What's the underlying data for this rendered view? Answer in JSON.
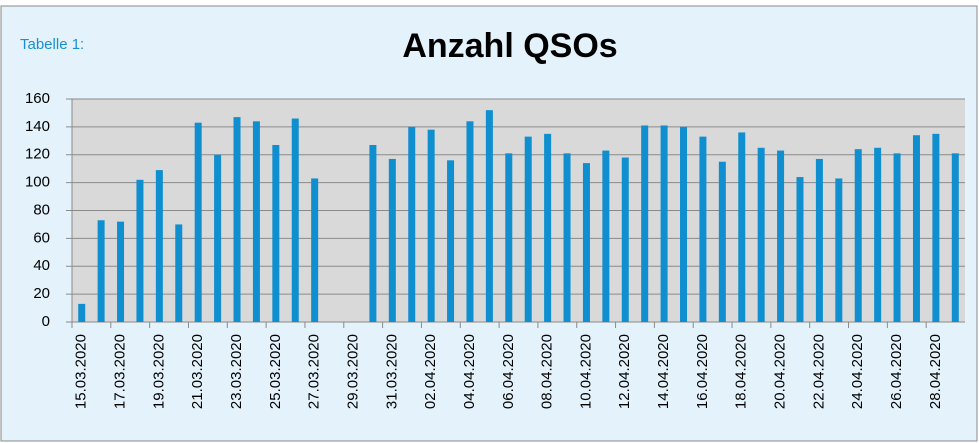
{
  "chart_data": {
    "type": "bar",
    "caption": "Tabelle 1:",
    "title": "Anzahl QSOs",
    "categories": [
      "15.03.2020",
      null,
      "17.03.2020",
      null,
      "19.03.2020",
      null,
      "21.03.2020",
      null,
      "23.03.2020",
      null,
      "25.03.2020",
      null,
      "27.03.2020",
      null,
      "29.03.2020",
      null,
      "31.03.2020",
      null,
      "02.04.2020",
      null,
      "04.04.2020",
      null,
      "06.04.2020",
      null,
      "08.04.2020",
      null,
      "10.04.2020",
      null,
      "12.04.2020",
      null,
      "14.04.2020",
      null,
      "16.04.2020",
      null,
      "18.04.2020",
      null,
      "20.04.2020",
      null,
      "22.04.2020",
      null,
      "24.04.2020",
      null,
      "26.04.2020",
      null,
      "28.04.2020",
      null
    ],
    "values": [
      13,
      73,
      72,
      102,
      109,
      70,
      143,
      120,
      147,
      144,
      127,
      146,
      103,
      null,
      null,
      127,
      117,
      140,
      138,
      116,
      144,
      152,
      121,
      133,
      135,
      121,
      114,
      123,
      118,
      141,
      141,
      140,
      133,
      115,
      136,
      125,
      123,
      104,
      117,
      103,
      124,
      125,
      121,
      134,
      135,
      121
    ],
    "color": "#0f8fcf",
    "ylim": [
      0,
      160
    ],
    "yticks": [
      0,
      20,
      40,
      60,
      80,
      100,
      120,
      140,
      160
    ],
    "grid": true
  }
}
